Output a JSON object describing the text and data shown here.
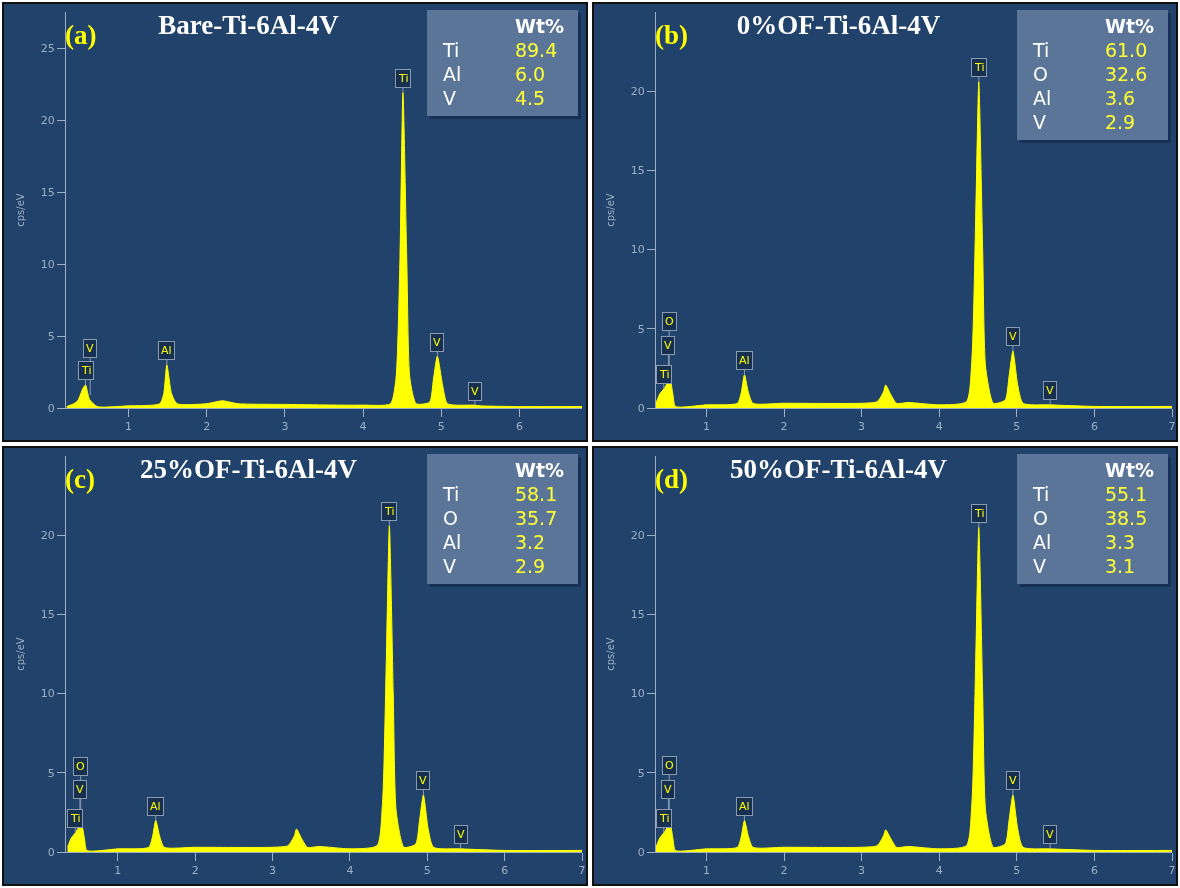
{
  "chart_data": [
    {
      "type": "area",
      "title": "Bare-Ti-6Al-4V",
      "ylabel": "cps/eV",
      "color": "#ffff00",
      "x": [
        0.21,
        0.3,
        0.35,
        0.42,
        0.45,
        0.5,
        0.6,
        1.0,
        1.4,
        1.45,
        1.49,
        1.55,
        1.62,
        2.0,
        2.2,
        2.4,
        3.0,
        4.0,
        4.35,
        4.42,
        4.47,
        4.51,
        4.56,
        4.6,
        4.68,
        4.85,
        4.9,
        4.95,
        5.02,
        5.08,
        5.43,
        5.5,
        6.0,
        6.8
      ],
      "values": [
        0.1,
        0.3,
        0.5,
        1.4,
        1.6,
        0.6,
        0.1,
        0.15,
        0.3,
        1.0,
        3.0,
        1.0,
        0.3,
        0.3,
        0.5,
        0.3,
        0.25,
        0.2,
        0.3,
        2,
        10,
        21.9,
        10,
        2,
        0.3,
        0.4,
        2,
        3.6,
        1.5,
        0.3,
        0.2,
        0.15,
        0.1,
        0.1
      ],
      "xlim": [
        0.2,
        6.8
      ],
      "ylim": [
        0,
        27.5
      ],
      "xticks": [
        1,
        2,
        3,
        4,
        5,
        6
      ],
      "yticks": [
        0,
        5,
        10,
        15,
        20,
        25
      ],
      "annotations": [
        "(a)",
        "Wt%",
        "Ti",
        "89.4",
        "Al",
        "6.0",
        "V",
        "4.5",
        {
          "text": "Ti",
          "x": 0.45,
          "y": 1.6
        },
        {
          "text": "V",
          "x": 0.51,
          "y": 0.9
        },
        {
          "text": "Al",
          "x": 1.49,
          "y": 3.0
        },
        {
          "text": "Ti",
          "x": 4.51,
          "y": 21.9
        },
        {
          "text": "V",
          "x": 4.95,
          "y": 3.6
        },
        {
          "text": "V",
          "x": 5.43,
          "y": 0.2
        }
      ]
    },
    {
      "type": "area",
      "title": "0%OF-Ti-6Al-4V",
      "ylabel": "cps/eV",
      "color": "#ffff00",
      "x": [
        0.35,
        0.4,
        0.45,
        0.5,
        0.53,
        0.57,
        0.6,
        1.0,
        1.4,
        1.45,
        1.49,
        1.54,
        1.6,
        2.0,
        3.0,
        3.2,
        3.28,
        3.31,
        3.37,
        3.45,
        3.6,
        4.0,
        4.35,
        4.42,
        4.47,
        4.51,
        4.56,
        4.6,
        4.7,
        4.85,
        4.9,
        4.95,
        5.01,
        5.08,
        5.43,
        6.0,
        7.0
      ],
      "values": [
        0.3,
        0.9,
        1.2,
        1.6,
        1.8,
        0.8,
        0.1,
        0.2,
        0.3,
        1.0,
        2.1,
        1.0,
        0.3,
        0.3,
        0.3,
        0.4,
        1.0,
        1.45,
        0.9,
        0.3,
        0.35,
        0.2,
        0.4,
        3,
        12,
        20.6,
        10,
        2.5,
        0.3,
        0.5,
        2,
        3.6,
        1.5,
        0.3,
        0.2,
        0.1,
        0.1
      ],
      "xlim": [
        0.35,
        7
      ],
      "ylim": [
        0,
        25
      ],
      "xticks": [
        1,
        2,
        3,
        4,
        5,
        6,
        7
      ],
      "yticks": [
        0,
        5,
        10,
        15,
        20
      ],
      "annotations": [
        "(b)",
        "Wt%",
        "Ti",
        "61.0",
        "O",
        "32.6",
        "Al",
        "3.6",
        "V",
        "2.9",
        {
          "text": "Ti",
          "x": 0.45,
          "y": 1.2
        },
        {
          "text": "V",
          "x": 0.51,
          "y": 1.7
        },
        {
          "text": "O",
          "x": 0.52,
          "y": 1.8
        },
        {
          "text": "Al",
          "x": 1.49,
          "y": 2.1
        },
        {
          "text": "Ti",
          "x": 4.51,
          "y": 20.6
        },
        {
          "text": "V",
          "x": 4.95,
          "y": 3.6
        },
        {
          "text": "V",
          "x": 5.43,
          "y": 0.2
        }
      ]
    },
    {
      "type": "area",
      "title": "25%OF-Ti-6Al-4V",
      "ylabel": "cps/eV",
      "color": "#ffff00",
      "x": [
        0.35,
        0.4,
        0.45,
        0.5,
        0.53,
        0.57,
        0.6,
        1.0,
        1.4,
        1.45,
        1.49,
        1.54,
        1.6,
        2.0,
        3.0,
        3.2,
        3.28,
        3.31,
        3.37,
        3.45,
        3.6,
        4.0,
        4.35,
        4.42,
        4.47,
        4.51,
        4.56,
        4.6,
        4.7,
        4.85,
        4.9,
        4.95,
        5.01,
        5.08,
        5.43,
        6.0,
        7.0
      ],
      "values": [
        0.3,
        0.9,
        1.2,
        1.6,
        1.75,
        0.8,
        0.1,
        0.2,
        0.3,
        1.0,
        2.0,
        1.0,
        0.3,
        0.3,
        0.3,
        0.4,
        1.0,
        1.45,
        0.9,
        0.3,
        0.35,
        0.2,
        0.4,
        3,
        12,
        20.6,
        10,
        2.5,
        0.3,
        0.5,
        2,
        3.6,
        1.5,
        0.3,
        0.2,
        0.1,
        0.1
      ],
      "xlim": [
        0.33,
        7
      ],
      "ylim": [
        0,
        25
      ],
      "xticks": [
        1,
        2,
        3,
        4,
        5,
        6,
        7
      ],
      "yticks": [
        0,
        5,
        10,
        15,
        20
      ],
      "annotations": [
        "(c)",
        "Wt%",
        "Ti",
        "58.1",
        "O",
        "35.7",
        "Al",
        "3.2",
        "V",
        "2.9",
        {
          "text": "Ti",
          "x": 0.45,
          "y": 1.2
        },
        {
          "text": "V",
          "x": 0.51,
          "y": 1.7
        },
        {
          "text": "O",
          "x": 0.52,
          "y": 1.75
        },
        {
          "text": "Al",
          "x": 1.49,
          "y": 2.0
        },
        {
          "text": "Ti",
          "x": 4.51,
          "y": 20.6
        },
        {
          "text": "V",
          "x": 4.95,
          "y": 3.6
        },
        {
          "text": "V",
          "x": 5.43,
          "y": 0.2
        }
      ]
    },
    {
      "type": "area",
      "title": "50%OF-Ti-6Al-4V",
      "ylabel": "cps/eV",
      "color": "#ffff00",
      "x": [
        0.35,
        0.4,
        0.45,
        0.5,
        0.53,
        0.57,
        0.6,
        1.0,
        1.4,
        1.45,
        1.49,
        1.54,
        1.6,
        2.0,
        3.0,
        3.2,
        3.28,
        3.31,
        3.37,
        3.45,
        3.6,
        4.0,
        4.35,
        4.42,
        4.47,
        4.51,
        4.56,
        4.6,
        4.7,
        4.85,
        4.9,
        4.95,
        5.01,
        5.08,
        5.43,
        6.0,
        7.0
      ],
      "values": [
        0.3,
        0.9,
        1.2,
        1.6,
        1.8,
        0.8,
        0.1,
        0.2,
        0.3,
        1.0,
        2.0,
        1.0,
        0.3,
        0.3,
        0.3,
        0.4,
        1.0,
        1.4,
        0.9,
        0.3,
        0.35,
        0.2,
        0.4,
        3,
        12,
        20.5,
        10,
        2.5,
        0.3,
        0.5,
        2,
        3.6,
        1.5,
        0.3,
        0.2,
        0.1,
        0.1
      ],
      "xlim": [
        0.35,
        7
      ],
      "ylim": [
        0,
        25
      ],
      "xticks": [
        1,
        2,
        3,
        4,
        5,
        6,
        7
      ],
      "yticks": [
        0,
        5,
        10,
        15,
        20
      ],
      "annotations": [
        "(d)",
        "Wt%",
        "Ti",
        "55.1",
        "O",
        "38.5",
        "Al",
        "3.3",
        "V",
        "3.1",
        {
          "text": "Ti",
          "x": 0.45,
          "y": 1.2
        },
        {
          "text": "V",
          "x": 0.51,
          "y": 1.7
        },
        {
          "text": "O",
          "x": 0.52,
          "y": 1.8
        },
        {
          "text": "Al",
          "x": 1.49,
          "y": 2.0
        },
        {
          "text": "Ti",
          "x": 4.51,
          "y": 20.5
        },
        {
          "text": "V",
          "x": 4.95,
          "y": 3.6
        },
        {
          "text": "V",
          "x": 5.43,
          "y": 0.2
        }
      ]
    }
  ]
}
